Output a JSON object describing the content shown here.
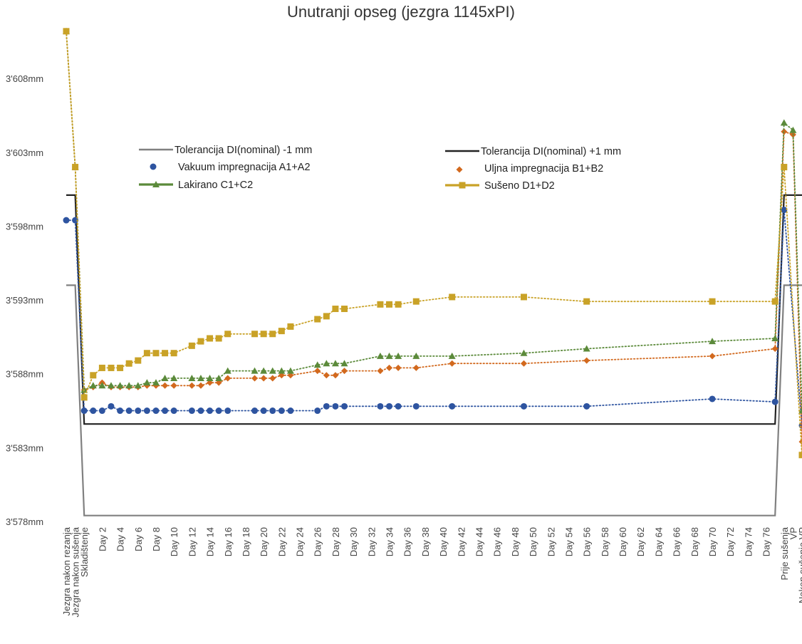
{
  "chart_data": {
    "type": "line",
    "title": "Unutranji opseg (jezgra 1145xPI)",
    "ylim": [
      3578,
      3611
    ],
    "ytick_values": [
      3578,
      3583,
      3588,
      3593,
      3598,
      3603,
      3608
    ],
    "ytick_labels": [
      "3'578mm",
      "3'583mm",
      "3'588mm",
      "3'593mm",
      "3'598mm",
      "3'603mm",
      "3'608mm"
    ],
    "grid": false,
    "legend_position": "top (inside plot, two columns)",
    "categories": [
      "Jezgra nakon rezanja",
      "Jezgra nakon sušenja",
      "Skladištenje",
      "Day 1",
      "Day 2",
      "Day 3",
      "Day 4",
      "Day 5",
      "Day 6",
      "Day 7",
      "Day 8",
      "Day 9",
      "Day 10",
      "Day 11",
      "Day 12",
      "Day 13",
      "Day 14",
      "Day 15",
      "Day 16",
      "Day 17",
      "Day 18",
      "Day 19",
      "Day 20",
      "Day 21",
      "Day 22",
      "Day 23",
      "Day 24",
      "Day 25",
      "Day 26",
      "Day 27",
      "Day 28",
      "Day 29",
      "Day 30",
      "Day 31",
      "Day 32",
      "Day 33",
      "Day 34",
      "Day 35",
      "Day 36",
      "Day 37",
      "Day 38",
      "Day 39",
      "Day 40",
      "Day 41",
      "Day 42",
      "Day 43",
      "Day 44",
      "Day 45",
      "Day 46",
      "Day 47",
      "Day 48",
      "Day 49",
      "Day 50",
      "Day 51",
      "Day 52",
      "Day 53",
      "Day 54",
      "Day 55",
      "Day 56",
      "Day 57",
      "Day 58",
      "Day 59",
      "Day 60",
      "Day 61",
      "Day 62",
      "Day 63",
      "Day 64",
      "Day 65",
      "Day 66",
      "Day 67",
      "Day 68",
      "Day 69",
      "Day 70",
      "Day 71",
      "Day 72",
      "Day 73",
      "Day 74",
      "Day 75",
      "Day 76",
      "Day 77",
      "Prije sušenja",
      "VP",
      "Nakon sušenja VP"
    ],
    "tick_labels": [
      "Jezgra nakon rezanja",
      "Jezgra nakon sušenja",
      "Skladištenje",
      "Day 2",
      "Day 4",
      "Day 6",
      "Day 8",
      "Day 10",
      "Day 12",
      "Day 14",
      "Day 16",
      "Day 18",
      "Day 20",
      "Day 22",
      "Day 24",
      "Day 26",
      "Day 28",
      "Day 30",
      "Day 32",
      "Day 34",
      "Day 36",
      "Day 38",
      "Day 40",
      "Day 42",
      "Day 44",
      "Day 46",
      "Day 48",
      "Day 50",
      "Day 52",
      "Day 54",
      "Day 56",
      "Day 58",
      "Day 60",
      "Day 62",
      "Day 64",
      "Day 66",
      "Day 68",
      "Day 70",
      "Day 72",
      "Day 74",
      "Day 76",
      "Prije sušenja",
      "VP",
      "Nakon sušenja VP"
    ],
    "series": [
      {
        "name": "Tolerancija DI(nominal) -1 mm",
        "style": "line",
        "color": "#808080",
        "points": [
          [
            "Jezgra nakon rezanja",
            3594
          ],
          [
            "Jezgra nakon sušenja",
            3594
          ],
          [
            "Skladištenje",
            3578.4
          ],
          [
            "Day 77",
            3578.4
          ],
          [
            "Prije sušenja",
            3594
          ],
          [
            "VP",
            3594
          ],
          [
            "Nakon sušenja VP",
            3594
          ]
        ]
      },
      {
        "name": "Tolerancija DI(nominal) +1 mm",
        "style": "line",
        "color": "#222222",
        "points": [
          [
            "Jezgra nakon rezanja",
            3600.1
          ],
          [
            "Jezgra nakon sušenja",
            3600.1
          ],
          [
            "Skladištenje",
            3584.6
          ],
          [
            "Day 77",
            3584.6
          ],
          [
            "Prije sušenja",
            3600.1
          ],
          [
            "VP",
            3600.1
          ],
          [
            "Nakon sušenja VP",
            3600.1
          ]
        ]
      },
      {
        "name": "Vakuum impregnacija A1+A2",
        "style": "dotted-markers",
        "marker": "circle",
        "color": "#2E54A0",
        "points": [
          [
            "Jezgra nakon rezanja",
            3598.4
          ],
          [
            "Jezgra nakon sušenja",
            3598.4
          ],
          [
            "Skladištenje",
            3585.5
          ],
          [
            "Day 1",
            3585.5
          ],
          [
            "Day 2",
            3585.5
          ],
          [
            "Day 3",
            3585.8
          ],
          [
            "Day 4",
            3585.5
          ],
          [
            "Day 5",
            3585.5
          ],
          [
            "Day 6",
            3585.5
          ],
          [
            "Day 7",
            3585.5
          ],
          [
            "Day 8",
            3585.5
          ],
          [
            "Day 9",
            3585.5
          ],
          [
            "Day 10",
            3585.5
          ],
          [
            "Day 12",
            3585.5
          ],
          [
            "Day 13",
            3585.5
          ],
          [
            "Day 14",
            3585.5
          ],
          [
            "Day 15",
            3585.5
          ],
          [
            "Day 16",
            3585.5
          ],
          [
            "Day 19",
            3585.5
          ],
          [
            "Day 20",
            3585.5
          ],
          [
            "Day 21",
            3585.5
          ],
          [
            "Day 22",
            3585.5
          ],
          [
            "Day 23",
            3585.5
          ],
          [
            "Day 26",
            3585.5
          ],
          [
            "Day 27",
            3585.8
          ],
          [
            "Day 28",
            3585.8
          ],
          [
            "Day 29",
            3585.8
          ],
          [
            "Day 33",
            3585.8
          ],
          [
            "Day 34",
            3585.8
          ],
          [
            "Day 35",
            3585.8
          ],
          [
            "Day 37",
            3585.8
          ],
          [
            "Day 41",
            3585.8
          ],
          [
            "Day 49",
            3585.8
          ],
          [
            "Day 56",
            3585.8
          ],
          [
            "Day 70",
            3586.3
          ],
          [
            "Day 77",
            3586.1
          ],
          [
            "Prije sušenja",
            3599.1
          ],
          [
            "Nakon sušenja VP",
            3584.5
          ],
          [
            "Nakon sušenja VP",
            3597.2
          ]
        ]
      },
      {
        "name": "Uljna impregnacija B1+B2",
        "style": "dotted-markers",
        "marker": "diamond",
        "color": "#D2691E",
        "points": [
          [
            "Jezgra nakon rezanja",
            3611.2
          ],
          [
            "Jezgra nakon sušenja",
            3602
          ],
          [
            "Skladištenje",
            3586.9
          ],
          [
            "Day 1",
            3587.1
          ],
          [
            "Day 2",
            3587.4
          ],
          [
            "Day 3",
            3587.1
          ],
          [
            "Day 4",
            3587.1
          ],
          [
            "Day 5",
            3587.1
          ],
          [
            "Day 6",
            3587.1
          ],
          [
            "Day 7",
            3587.2
          ],
          [
            "Day 8",
            3587.2
          ],
          [
            "Day 9",
            3587.2
          ],
          [
            "Day 10",
            3587.2
          ],
          [
            "Day 12",
            3587.2
          ],
          [
            "Day 13",
            3587.2
          ],
          [
            "Day 14",
            3587.4
          ],
          [
            "Day 15",
            3587.4
          ],
          [
            "Day 16",
            3587.7
          ],
          [
            "Day 19",
            3587.7
          ],
          [
            "Day 20",
            3587.7
          ],
          [
            "Day 21",
            3587.7
          ],
          [
            "Day 22",
            3587.9
          ],
          [
            "Day 23",
            3587.9
          ],
          [
            "Day 26",
            3588.2
          ],
          [
            "Day 27",
            3587.9
          ],
          [
            "Day 28",
            3587.9
          ],
          [
            "Day 29",
            3588.2
          ],
          [
            "Day 33",
            3588.2
          ],
          [
            "Day 34",
            3588.4
          ],
          [
            "Day 35",
            3588.4
          ],
          [
            "Day 37",
            3588.4
          ],
          [
            "Day 41",
            3588.7
          ],
          [
            "Day 49",
            3588.7
          ],
          [
            "Day 56",
            3588.9
          ],
          [
            "Day 70",
            3589.2
          ],
          [
            "Day 77",
            3589.7
          ],
          [
            "Prije sušenja",
            3604.4
          ],
          [
            "VP",
            3604.2
          ],
          [
            "Nakon sušenja VP",
            3583.4
          ],
          [
            "Nakon sušenja VP",
            3598.2
          ]
        ]
      },
      {
        "name": "Lakirano C1+C2",
        "style": "dotted-markers",
        "marker": "triangle",
        "color": "#5B8A3A",
        "points": [
          [
            "Jezgra nakon rezanja",
            3611.2
          ],
          [
            "Jezgra nakon sušenja",
            3602
          ],
          [
            "Skladištenje",
            3586.9
          ],
          [
            "Day 1",
            3587.2
          ],
          [
            "Day 2",
            3587.2
          ],
          [
            "Day 3",
            3587.2
          ],
          [
            "Day 4",
            3587.2
          ],
          [
            "Day 5",
            3587.2
          ],
          [
            "Day 6",
            3587.2
          ],
          [
            "Day 7",
            3587.4
          ],
          [
            "Day 8",
            3587.4
          ],
          [
            "Day 9",
            3587.7
          ],
          [
            "Day 10",
            3587.7
          ],
          [
            "Day 12",
            3587.7
          ],
          [
            "Day 13",
            3587.7
          ],
          [
            "Day 14",
            3587.7
          ],
          [
            "Day 15",
            3587.7
          ],
          [
            "Day 16",
            3588.2
          ],
          [
            "Day 19",
            3588.2
          ],
          [
            "Day 20",
            3588.2
          ],
          [
            "Day 21",
            3588.2
          ],
          [
            "Day 22",
            3588.2
          ],
          [
            "Day 23",
            3588.2
          ],
          [
            "Day 26",
            3588.6
          ],
          [
            "Day 27",
            3588.7
          ],
          [
            "Day 28",
            3588.7
          ],
          [
            "Day 29",
            3588.7
          ],
          [
            "Day 33",
            3589.2
          ],
          [
            "Day 34",
            3589.2
          ],
          [
            "Day 35",
            3589.2
          ],
          [
            "Day 37",
            3589.2
          ],
          [
            "Day 41",
            3589.2
          ],
          [
            "Day 49",
            3589.4
          ],
          [
            "Day 56",
            3589.7
          ],
          [
            "Day 70",
            3590.2
          ],
          [
            "Day 77",
            3590.4
          ],
          [
            "Prije sušenja",
            3605
          ],
          [
            "VP",
            3604.5
          ],
          [
            "Nakon sušenja VP",
            3585.5
          ],
          [
            "Nakon sušenja VP",
            3599.5
          ]
        ]
      },
      {
        "name": "Sušeno D1+D2",
        "style": "dotted-markers",
        "marker": "square",
        "color": "#C9A227",
        "points": [
          [
            "Jezgra nakon rezanja",
            3611.2
          ],
          [
            "Jezgra nakon sušenja",
            3602
          ],
          [
            "Skladištenje",
            3586.4
          ],
          [
            "Day 1",
            3587.9
          ],
          [
            "Day 2",
            3588.4
          ],
          [
            "Day 3",
            3588.4
          ],
          [
            "Day 4",
            3588.4
          ],
          [
            "Day 5",
            3588.7
          ],
          [
            "Day 6",
            3588.9
          ],
          [
            "Day 7",
            3589.4
          ],
          [
            "Day 8",
            3589.4
          ],
          [
            "Day 9",
            3589.4
          ],
          [
            "Day 10",
            3589.4
          ],
          [
            "Day 12",
            3589.9
          ],
          [
            "Day 13",
            3590.2
          ],
          [
            "Day 14",
            3590.4
          ],
          [
            "Day 15",
            3590.4
          ],
          [
            "Day 16",
            3590.7
          ],
          [
            "Day 19",
            3590.7
          ],
          [
            "Day 20",
            3590.7
          ],
          [
            "Day 21",
            3590.7
          ],
          [
            "Day 22",
            3590.9
          ],
          [
            "Day 23",
            3591.2
          ],
          [
            "Day 26",
            3591.7
          ],
          [
            "Day 27",
            3591.9
          ],
          [
            "Day 28",
            3592.4
          ],
          [
            "Day 29",
            3592.4
          ],
          [
            "Day 33",
            3592.7
          ],
          [
            "Day 34",
            3592.7
          ],
          [
            "Day 35",
            3592.7
          ],
          [
            "Day 37",
            3592.9
          ],
          [
            "Day 41",
            3593.2
          ],
          [
            "Day 49",
            3593.2
          ],
          [
            "Day 56",
            3592.9
          ],
          [
            "Day 70",
            3592.9
          ],
          [
            "Day 77",
            3592.9
          ],
          [
            "Prije sušenja",
            3602
          ],
          [
            "Nakon sušenja VP",
            3582.5
          ],
          [
            "Nakon sušenja VP",
            3597.5
          ]
        ]
      }
    ]
  }
}
